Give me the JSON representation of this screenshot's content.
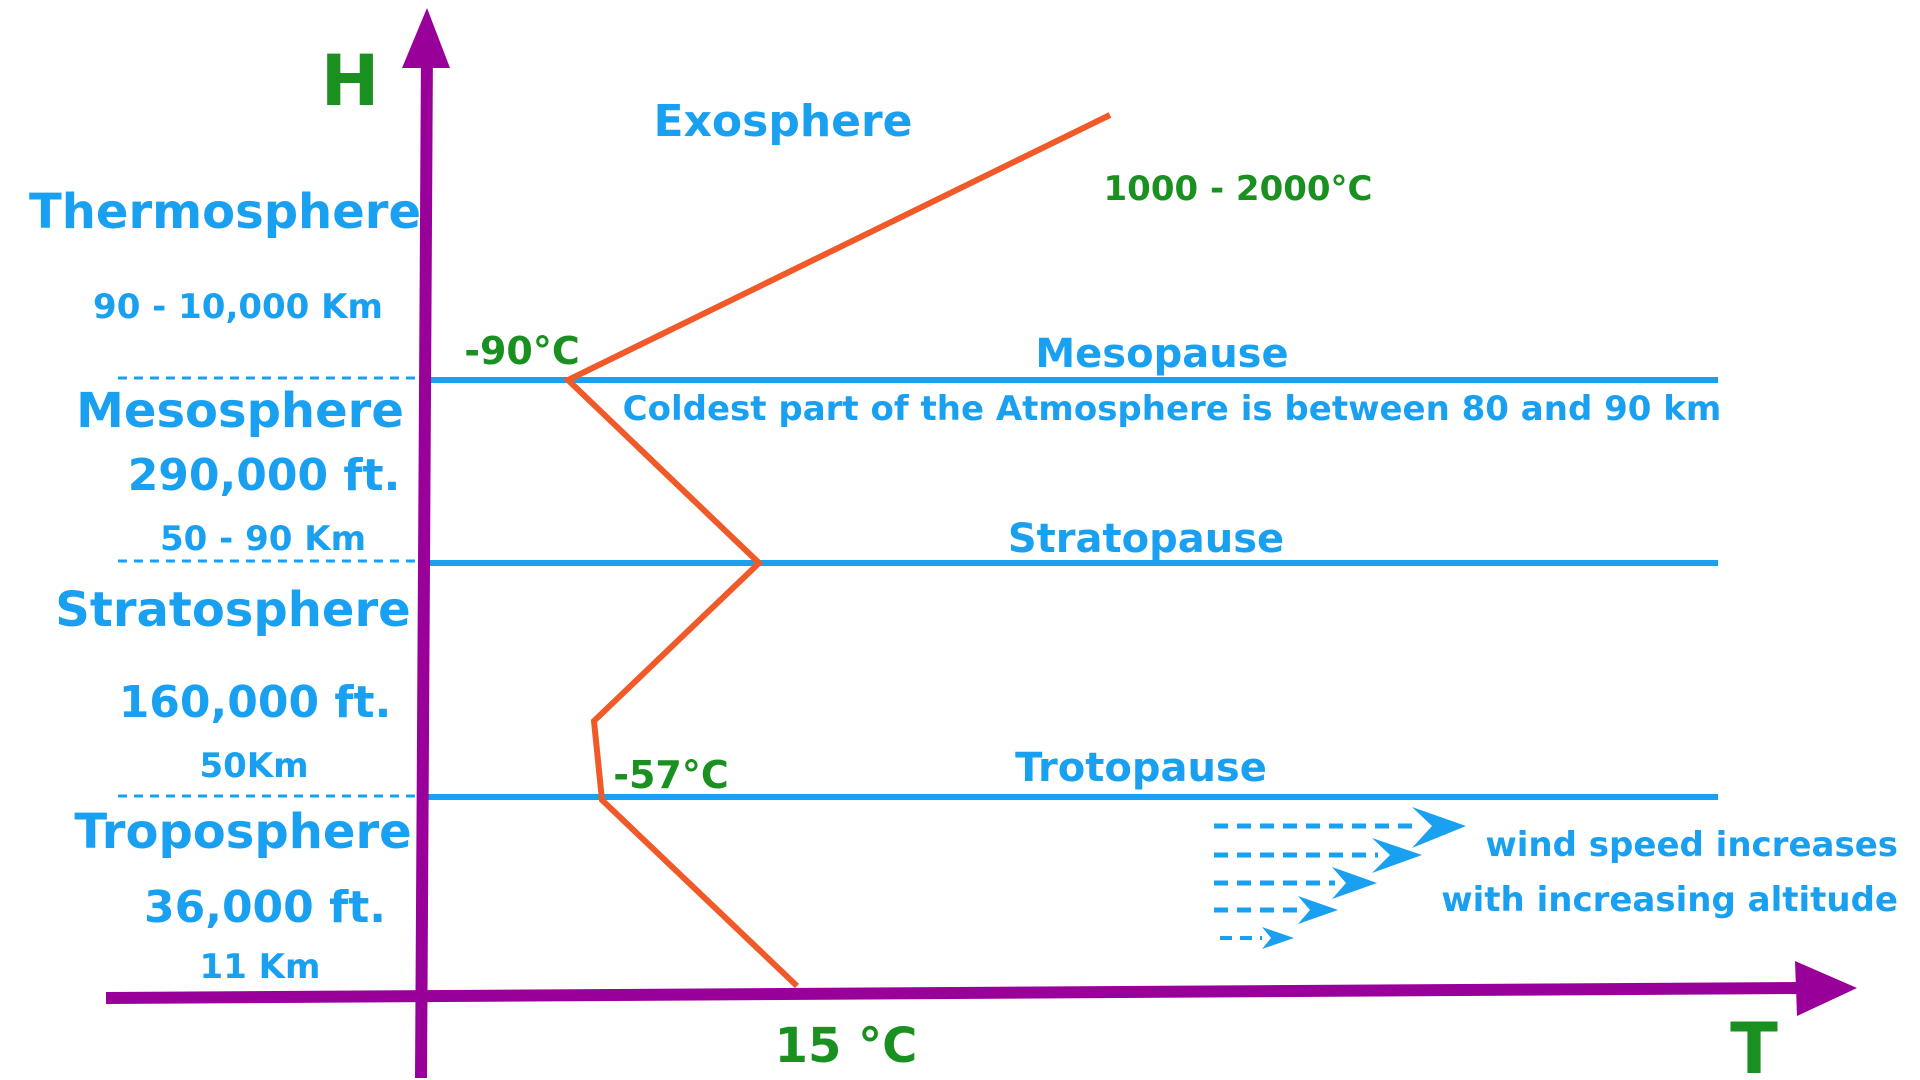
{
  "axes": {
    "y_label": "H",
    "x_label": "T"
  },
  "layers": {
    "exosphere": "Exosphere",
    "thermosphere": {
      "name": "Thermosphere",
      "range": "90 - 10,000 Km"
    },
    "mesosphere": {
      "name": "Mesosphere",
      "height_ft": "290,000 ft.",
      "range": "50 - 90 Km"
    },
    "stratosphere": {
      "name": "Stratosphere",
      "height_ft": "160,000 ft.",
      "range": "50Km"
    },
    "troposphere": {
      "name": "Troposphere",
      "height_ft": "36,000 ft.",
      "range": "11 Km"
    }
  },
  "boundaries": {
    "mesopause": "Mesopause",
    "stratopause": "Stratopause",
    "tropopause": "Trotopause"
  },
  "temperatures": {
    "thermosphere_top": "1000 - 2000°C",
    "mesopause": "-90°C",
    "tropopause": "-57°C",
    "surface": "15 °C"
  },
  "notes": {
    "coldest": "Coldest part of the Atmosphere is between 80 and 90 km",
    "wind_line1": "wind speed increases",
    "wind_line2": "with increasing altitude"
  },
  "colors": {
    "axis": "#990099",
    "boundary": "#1aa0f0",
    "temperature_profile": "#f05a28",
    "layer_text": "#1aa0f0",
    "temperature_text": "#1a9020"
  }
}
